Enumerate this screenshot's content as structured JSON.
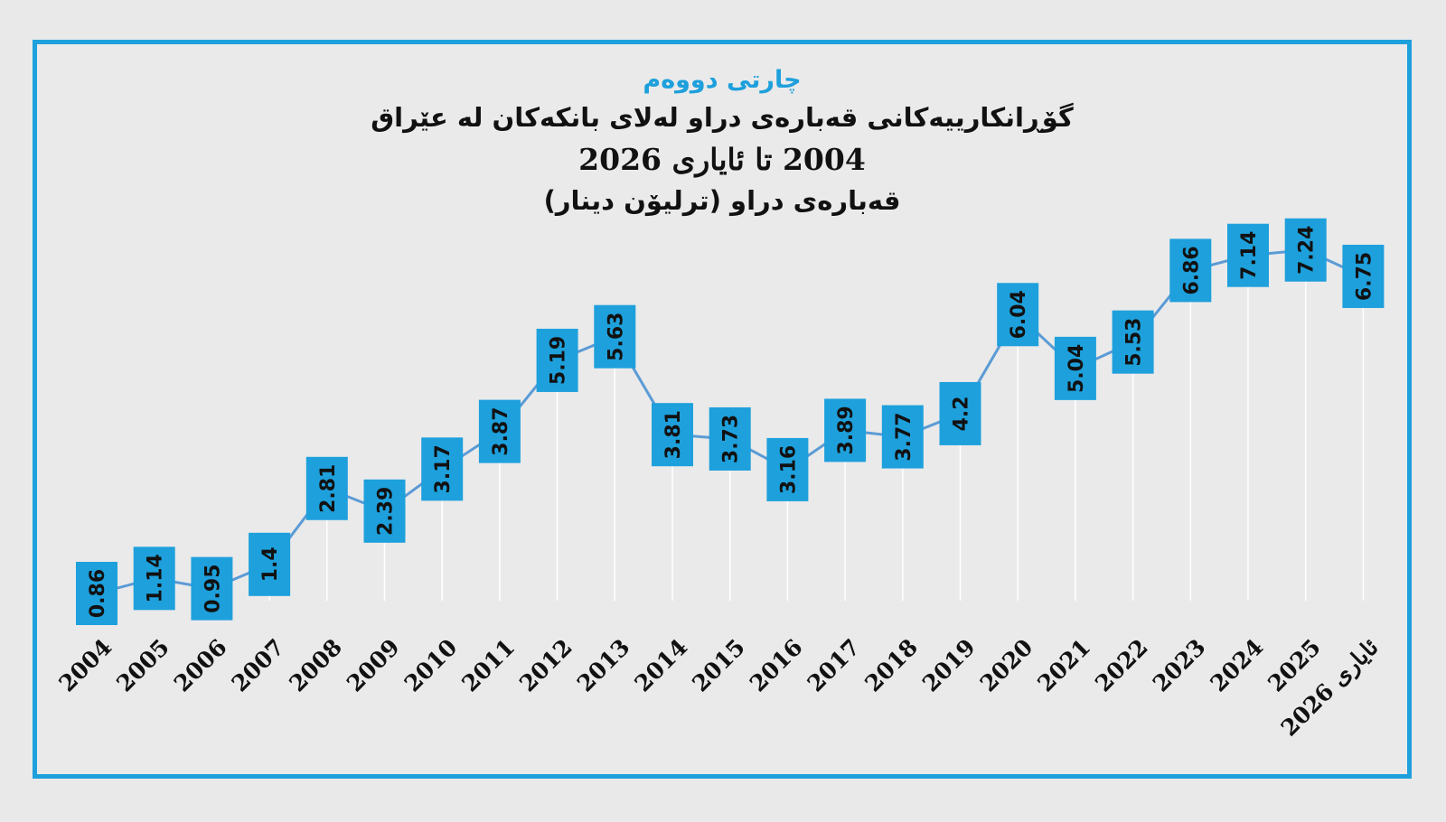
{
  "chart_data": {
    "type": "line",
    "label": "چارتی دووەم",
    "title": "گۆڕانکارییەکانی قەبارەی دراو لەلای بانکەکان لە عێراق",
    "subtitle": "2004 تا ئایاری 2026",
    "ylabel": "قەبارەی دراو (ترلیۆن دینار)",
    "categories": [
      "2004",
      "2005",
      "2006",
      "2007",
      "2008",
      "2009",
      "2010",
      "2011",
      "2012",
      "2013",
      "2014",
      "2015",
      "2016",
      "2017",
      "2018",
      "2019",
      "2020",
      "2021",
      "2022",
      "2023",
      "2024",
      "2025",
      "ئایاری 2026"
    ],
    "series": [
      {
        "values": [
          0.86,
          1.14,
          0.95,
          1.4,
          2.81,
          2.39,
          3.17,
          3.87,
          5.19,
          5.63,
          3.81,
          3.73,
          3.16,
          3.89,
          3.77,
          4.2,
          6.04,
          5.04,
          5.53,
          6.86,
          7.14,
          7.24,
          6.75
        ],
        "labels": [
          "0.86",
          "1.14",
          "0.95",
          "1.4",
          "2.81",
          "2.39",
          "3.17",
          "3.87",
          "5.19",
          "5.63",
          "3.81",
          "3.73",
          "3.16",
          "3.89",
          "3.77",
          "4.2",
          "6.04",
          "5.04",
          "5.53",
          "6.86",
          "7.14",
          "7.24",
          "6.75"
        ],
        "color": "#5b9bd5"
      }
    ],
    "label_box_color": "#1ea0dc",
    "border_color": "#1ea0dc",
    "grid": false,
    "ylim": [
      0,
      8
    ]
  }
}
